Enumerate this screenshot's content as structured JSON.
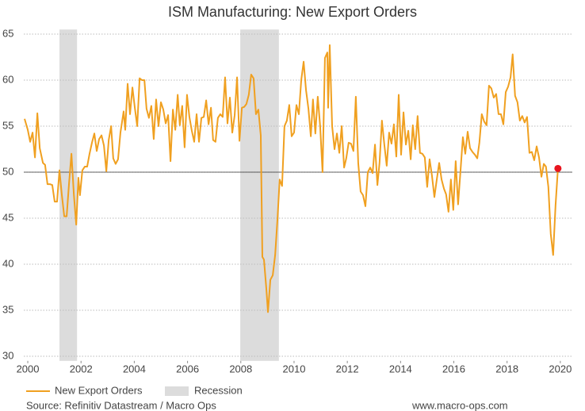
{
  "chart_data": {
    "type": "line",
    "title": "ISM Manufacturing: New Export Orders",
    "source": "Source: Refinitiv Datastream / Macro Ops",
    "website": "www.macro-ops.com",
    "xlim": [
      1999.85,
      2020.45
    ],
    "xticks": [
      2000,
      2002,
      2004,
      2006,
      2008,
      2010,
      2012,
      2014,
      2016,
      2018,
      2020
    ],
    "ylim": [
      29.5,
      65.5
    ],
    "yticks": [
      30,
      35,
      40,
      45,
      50,
      55,
      60,
      65
    ],
    "grid": true,
    "reference_line": 50,
    "recession": {
      "name": "Recession",
      "color": "#dcdcdc",
      "spans": [
        [
          2001.19,
          2001.85
        ],
        [
          2007.98,
          2009.43
        ]
      ]
    },
    "highlight_color": "#e8141e",
    "series": [
      {
        "name": "New Export Orders",
        "color": "#f0a020",
        "x": [
          1999.88,
          2000.0,
          2000.09,
          2000.18,
          2000.27,
          2000.36,
          2000.45,
          2000.57,
          2000.65,
          2000.74,
          2000.83,
          2000.92,
          2001.01,
          2001.1,
          2001.19,
          2001.28,
          2001.37,
          2001.46,
          2001.55,
          2001.64,
          2001.73,
          2001.82,
          2001.9,
          2001.96,
          2002.05,
          2002.14,
          2002.23,
          2002.32,
          2002.41,
          2002.5,
          2002.59,
          2002.68,
          2002.77,
          2002.86,
          2002.95,
          2003.04,
          2003.13,
          2003.21,
          2003.3,
          2003.39,
          2003.48,
          2003.6,
          2003.66,
          2003.75,
          2003.84,
          2003.93,
          2004.02,
          2004.11,
          2004.2,
          2004.29,
          2004.38,
          2004.46,
          2004.55,
          2004.64,
          2004.73,
          2004.82,
          2004.91,
          2005.0,
          2005.09,
          2005.18,
          2005.27,
          2005.36,
          2005.45,
          2005.54,
          2005.63,
          2005.71,
          2005.8,
          2005.89,
          2005.98,
          2006.07,
          2006.16,
          2006.25,
          2006.34,
          2006.43,
          2006.52,
          2006.61,
          2006.7,
          2006.79,
          2006.88,
          2006.96,
          2007.05,
          2007.14,
          2007.23,
          2007.32,
          2007.41,
          2007.5,
          2007.59,
          2007.68,
          2007.77,
          2007.86,
          2007.95,
          2008.04,
          2008.13,
          2008.21,
          2008.3,
          2008.39,
          2008.48,
          2008.57,
          2008.66,
          2008.75,
          2008.81,
          2008.87,
          2008.96,
          2009.02,
          2009.11,
          2009.2,
          2009.29,
          2009.38,
          2009.46,
          2009.55,
          2009.64,
          2009.73,
          2009.82,
          2009.91,
          2010.0,
          2010.09,
          2010.18,
          2010.27,
          2010.36,
          2010.45,
          2010.54,
          2010.63,
          2010.71,
          2010.8,
          2010.89,
          2010.98,
          2011.07,
          2011.16,
          2011.25,
          2011.28,
          2011.34,
          2011.43,
          2011.52,
          2011.61,
          2011.7,
          2011.79,
          2011.88,
          2011.96,
          2012.05,
          2012.14,
          2012.23,
          2012.32,
          2012.41,
          2012.5,
          2012.59,
          2012.68,
          2012.77,
          2012.86,
          2012.95,
          2013.04,
          2013.13,
          2013.21,
          2013.3,
          2013.39,
          2013.48,
          2013.57,
          2013.66,
          2013.75,
          2013.84,
          2013.93,
          2014.02,
          2014.11,
          2014.2,
          2014.29,
          2014.38,
          2014.46,
          2014.55,
          2014.64,
          2014.73,
          2014.82,
          2014.91,
          2015.0,
          2015.09,
          2015.18,
          2015.27,
          2015.36,
          2015.45,
          2015.54,
          2015.63,
          2015.71,
          2015.8,
          2015.89,
          2015.98,
          2016.07,
          2016.16,
          2016.25,
          2016.34,
          2016.43,
          2016.52,
          2016.61,
          2016.7,
          2016.79,
          2016.88,
          2016.96,
          2017.05,
          2017.14,
          2017.23,
          2017.32,
          2017.41,
          2017.5,
          2017.59,
          2017.68,
          2017.77,
          2017.86,
          2017.95,
          2018.04,
          2018.13,
          2018.21,
          2018.3,
          2018.39,
          2018.48,
          2018.57,
          2018.66,
          2018.75,
          2018.84,
          2018.93,
          2019.02,
          2019.11,
          2019.2,
          2019.29,
          2019.38,
          2019.46,
          2019.55,
          2019.64,
          2019.73,
          2019.82,
          2019.91
        ],
        "values": [
          55.8,
          54.6,
          53.3,
          54.3,
          51.6,
          56.4,
          52.6,
          51,
          50.8,
          48.7,
          48.7,
          48.6,
          46.8,
          46.8,
          50.2,
          47.5,
          45.2,
          45.2,
          48.8,
          52.0,
          47.6,
          44.3,
          49.4,
          47.5,
          50.2,
          50.6,
          50.6,
          52.0,
          53.2,
          54.2,
          52.3,
          53.6,
          54.0,
          52.9,
          50.1,
          53.5,
          55.0,
          51.5,
          50.9,
          51.4,
          54.3,
          56.6,
          54.6,
          59.6,
          56.3,
          59.2,
          57.0,
          55.0,
          60.2,
          60.0,
          60.0,
          56.9,
          55.9,
          57.2,
          53.6,
          57.9,
          55.0,
          57.6,
          56.8,
          55.3,
          56.2,
          51.2,
          56.8,
          54.6,
          58.4,
          55.1,
          57.2,
          52.7,
          58.4,
          56.0,
          54.5,
          53.3,
          56.3,
          53.3,
          55.9,
          56.0,
          57.8,
          55.2,
          57.0,
          53.5,
          53.3,
          55.9,
          56.3,
          56.0,
          60.3,
          55.3,
          58.1,
          54.3,
          56.2,
          60.3,
          53.4,
          57.0,
          57.1,
          57.4,
          58.4,
          60.6,
          60.2,
          56.3,
          56.8,
          54.0,
          40.8,
          40.5,
          37.3,
          34.8,
          38.3,
          38.8,
          41.0,
          45.0,
          49.2,
          48.5,
          55.0,
          55.6,
          57.3,
          53.9,
          54.3,
          57.3,
          56.3,
          60.0,
          62.0,
          58.9,
          56.9,
          53.9,
          57.9,
          54.2,
          58.2,
          55.0,
          50.0,
          62.4,
          63.0,
          57.0,
          63.8,
          55.0,
          52.5,
          54.2,
          52.1,
          55.0,
          50.5,
          51.5,
          53.2,
          53.1,
          52.3,
          58.2,
          51.0,
          47.9,
          47.5,
          46.3,
          50.0,
          50.5,
          49.9,
          53.0,
          48.6,
          51.0,
          55.6,
          53.0,
          50.7,
          54.3,
          53.1,
          55.2,
          51.7,
          58.4,
          51.9,
          56.5,
          53.0,
          54.5,
          51.4,
          55.1,
          52.5,
          56.1,
          52.1,
          52.0,
          51.6,
          48.4,
          51.4,
          49.6,
          47.3,
          49.2,
          51.0,
          49.2,
          48.2,
          47.6,
          45.7,
          49.2,
          45.9,
          51.2,
          46.5,
          50.1,
          53.8,
          52.0,
          54.4,
          52.6,
          52.2,
          51.9,
          51.5,
          53.2,
          56.3,
          55.5,
          55.1,
          59.4,
          59.1,
          58.1,
          58.5,
          56.3,
          56.3,
          55.2,
          58.7,
          59.3,
          60.3,
          62.8,
          58.3,
          57.6,
          55.6,
          56.1,
          55.4,
          56.0,
          52.1,
          52.2,
          51.3,
          52.8,
          51.6,
          49.5,
          50.9,
          50.6,
          48.4,
          43.3,
          41.0,
          46.4,
          50.4
        ]
      }
    ]
  }
}
